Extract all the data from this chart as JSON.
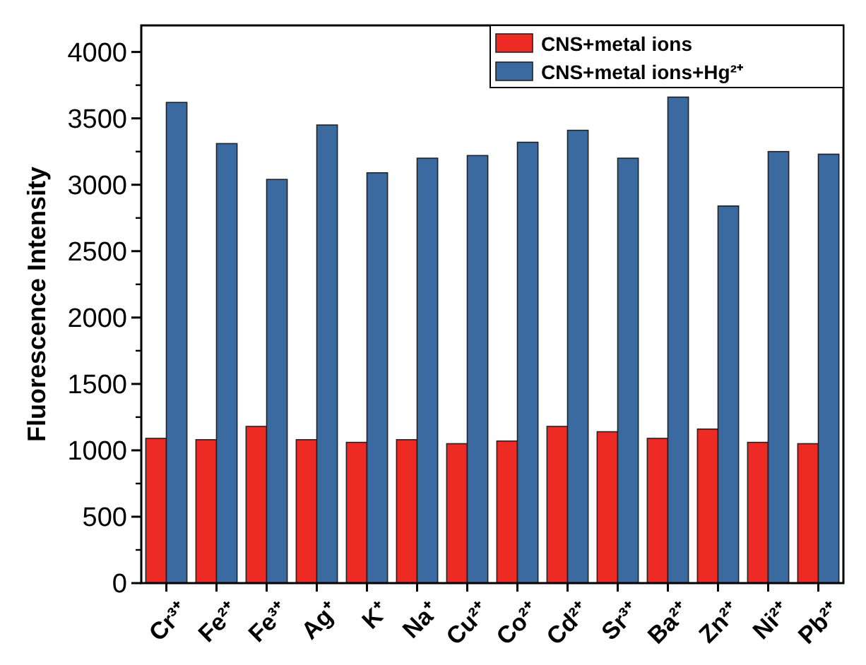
{
  "chart_data": {
    "type": "bar",
    "ylabel": "Fluorescence Intensity",
    "categories": [
      "Cr³⁺",
      "Fe²⁺",
      "Fe³⁺",
      "Ag⁺",
      "K⁺",
      "Na⁺",
      "Cu²⁺",
      "Co²⁺",
      "Cd²⁺",
      "Sr³⁺",
      "Ba²⁺",
      "Zn²⁺",
      "Ni²⁺",
      "Pb²⁺"
    ],
    "series": [
      {
        "name": "CNS+metal ions",
        "color": "#ee2a24",
        "values": [
          1090,
          1080,
          1180,
          1080,
          1060,
          1080,
          1050,
          1070,
          1180,
          1140,
          1090,
          1160,
          1060,
          1050
        ]
      },
      {
        "name": "CNS+metal ions+Hg²⁺",
        "color": "#3a6aa0",
        "values": [
          3620,
          3310,
          3040,
          3450,
          3090,
          3200,
          3220,
          3320,
          3410,
          3200,
          3660,
          2840,
          3250,
          3230
        ]
      }
    ],
    "ylim": [
      0,
      4200
    ],
    "yticks": [
      0,
      500,
      1000,
      1500,
      2000,
      2500,
      3000,
      3500,
      4000
    ],
    "grid": false,
    "legend": "top right"
  }
}
